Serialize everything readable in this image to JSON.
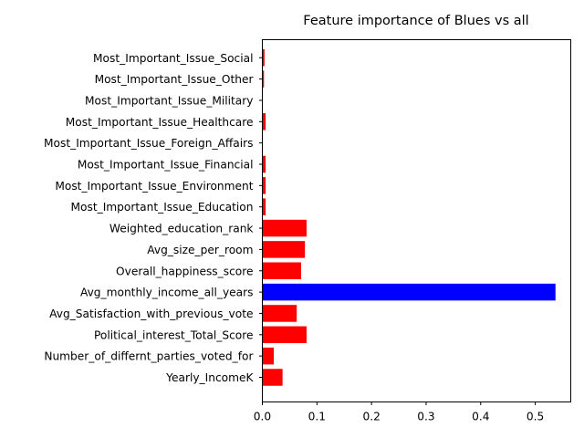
{
  "chart_data": {
    "type": "bar",
    "orientation": "horizontal",
    "title": "Feature importance of Blues vs all",
    "xlabel": "",
    "ylabel": "",
    "xlim": [
      0,
      0.565
    ],
    "grid": false,
    "categories": [
      "Yearly_IncomeK",
      "Number_of_differnt_parties_voted_for",
      "Political_interest_Total_Score",
      "Avg_Satisfaction_with_previous_vote",
      "Avg_monthly_income_all_years",
      "Overall_happiness_score",
      "Avg_size_per_room",
      "Weighted_education_rank",
      "Most_Important_Issue_Education",
      "Most_Important_Issue_Environment",
      "Most_Important_Issue_Financial",
      "Most_Important_Issue_Foreign_Affairs",
      "Most_Important_Issue_Healthcare",
      "Most_Important_Issue_Military",
      "Most_Important_Issue_Other",
      "Most_Important_Issue_Social"
    ],
    "values": [
      0.037,
      0.021,
      0.081,
      0.063,
      0.537,
      0.071,
      0.078,
      0.081,
      0.006,
      0.006,
      0.006,
      0.0,
      0.006,
      0.0,
      0.003,
      0.004
    ],
    "highlight_index": 4,
    "colors": {
      "default": "#ff0000",
      "highlight": "#0000ff"
    },
    "xticks": [
      "0.0",
      "0.1",
      "0.2",
      "0.3",
      "0.4",
      "0.5"
    ]
  }
}
